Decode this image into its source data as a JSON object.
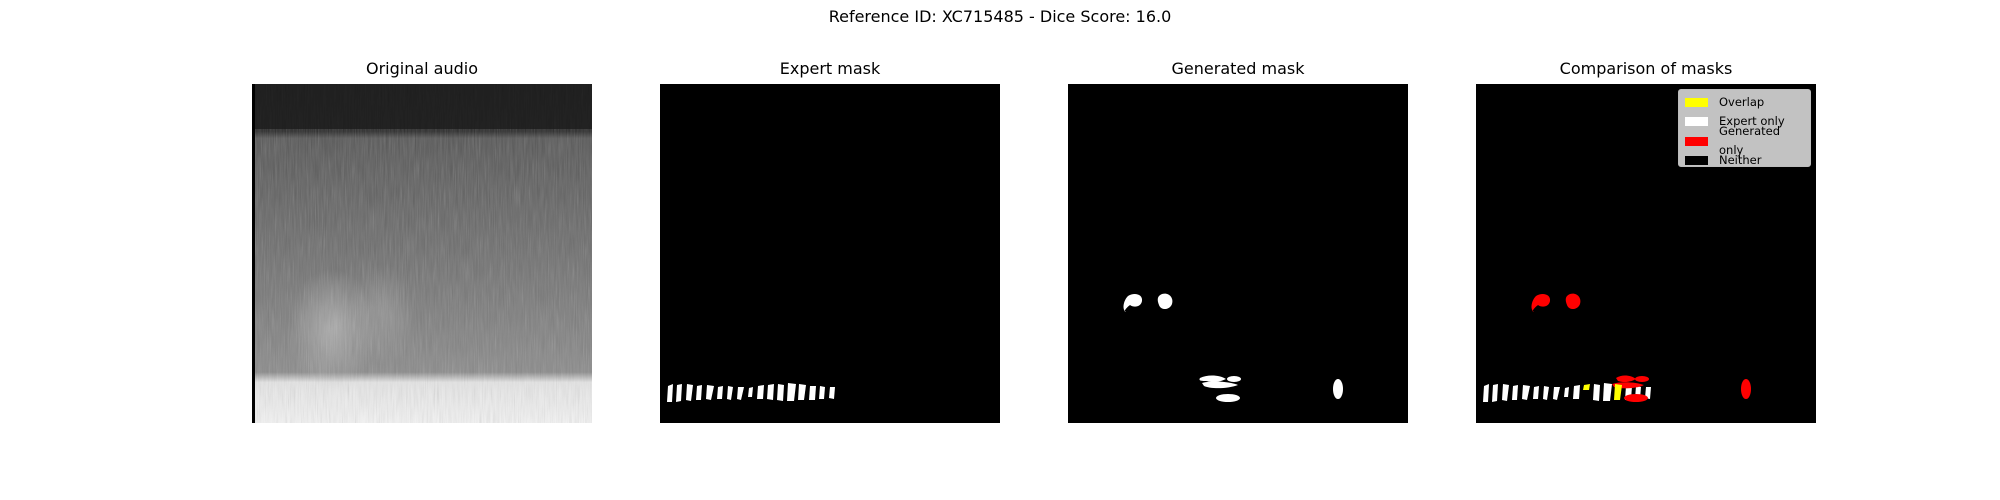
{
  "figure": {
    "title": "Reference ID: XC715485 - Dice Score: 16.0"
  },
  "panels": [
    {
      "title": "Original audio"
    },
    {
      "title": "Expert mask"
    },
    {
      "title": "Generated mask"
    },
    {
      "title": "Comparison of masks"
    }
  ],
  "legend": {
    "items": [
      {
        "label": "Overlap",
        "color": "#ffff00"
      },
      {
        "label": "Expert only",
        "color": "#ffffff"
      },
      {
        "label": "Generated only",
        "color": "#ff0000"
      },
      {
        "label": "Neither",
        "color": "#000000"
      }
    ]
  }
}
